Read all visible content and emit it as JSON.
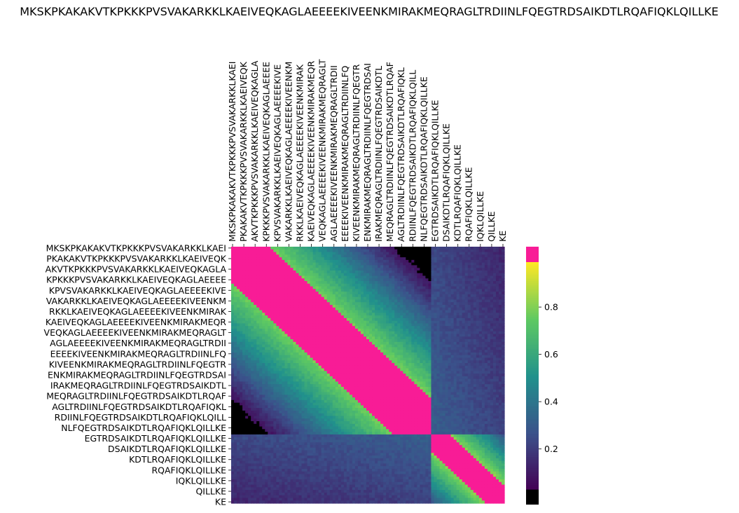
{
  "chart_data": {
    "type": "heatmap",
    "title": "MKSKPKAKAKVTKPKKKPVSVAKARKKLKAEIVEQKAGLAEEEEKIVEENKMIRAKMEQRAGLTRDIINLFQEGTRDSAIKDTLRQAFIQKLQILLKE",
    "sequence": "MKSKPKAKAKVTKPKKKPVSVAKARKKLKAEIVEQKAGLAEEEEKIVEENKMIRAKMEQRAGLTRDIINLFQEGTRDSAIKDTLRQAFIQKLQILLKE",
    "x_tick_labels": [
      "MKSKPKAKAKVTKPKKKPVSVAKARKKLKAEI",
      "PKAKAKVTKPKKKPVSVAKARKKLKAEIVEQK",
      "AKVTKPKKKPVSVAKARKKLKAEIVEQKAGLA",
      "KPKKKPVSVAKARKKLKAEIVEQKAGLAEEEE",
      "KPVSVAKARKKLKAEIVEQKAGLAEEEEKIVE",
      "VAKARKKLKAEIVEQKAGLAEEEEKIVEENKM",
      "RKKLKAEIVEQKAGLAEEEEKIVEENKMIRAK",
      "KAEIVEQKAGLAEEEEKIVEENKMIRAKMEQR",
      "VEQKAGLAEEEEKIVEENKMIRAKMEQRAGLT",
      "AGLAEEEEKIVEENKMIRAKMEQRAGLTRDII",
      "EEEEKIVEENKMIRAKMEQRAGLTRDIINLFQ",
      "KIVEENKMIRAKMEQRAGLTRDIINLFQEGTR",
      "ENKMIRAKMEQRAGLTRDIINLFQEGTRDSAI",
      "IRAKMEQRAGLTRDIINLFQEGTRDSAIKDTL",
      "MEQRAGLTRDIINLFQEGTRDSAIKDTLRQAF",
      "AGLTRDIINLFQEGTRDSAIKDTLRQAFIQKL",
      "RDIINLFQEGTRDSAIKDTLRQAFIQKLQILL",
      "NLFQEGTRDSAIKDTLRQAFIQKLQILLKE",
      "EGTRDSAIKDTLRQAFIQKLQILLKE",
      "DSAIKDTLRQAFIQKLQILLKE",
      "KDTLRQAFIQKLQILLKE",
      "RQAFIQKLQILLKE",
      "IQKLQILLKE",
      "QILLKE",
      "KE"
    ],
    "y_tick_labels": [
      "MKSKPKAKAKVTKPKKKPVSVAKARKKLKAEI",
      "PKAKAKVTKPKKKPVSVAKARKKLKAEIVEQK",
      "AKVTKPKKKPVSVAKARKKLKAEIVEQKAGLA",
      "KPKKKPVSVAKARKKLKAEIVEQKAGLAEEEE",
      "KPVSVAKARKKLKAEIVEQKAGLAEEEEKIVE",
      "VAKARKKLKAEIVEQKAGLAEEEEKIVEENKM",
      "RKKLKAEIVEQKAGLAEEEEKIVEENKMIRAK",
      "KAEIVEQKAGLAEEEEKIVEENKMIRAKMEQR",
      "VEQKAGLAEEEEKIVEENKMIRAKMEQRAGLT",
      "AGLAEEEEKIVEENKMIRAKMEQRAGLTRDII",
      "EEEEKIVEENKMIRAKMEQRAGLTRDIINLFQ",
      "KIVEENKMIRAKMEQRAGLTRDIINLFQEGTR",
      "ENKMIRAKMEQRAGLTRDIINLFQEGTRDSAI",
      "IRAKMEQRAGLTRDIINLFQEGTRDSAIKDTL",
      "MEQRAGLTRDIINLFQEGTRDSAIKDTLRQAF",
      "AGLTRDIINLFQEGTRDSAIKDTLRQAFIQKL",
      "RDIINLFQEGTRDSAIKDTLRQAFIQKLQILL",
      "NLFQEGTRDSAIKDTLRQAFIQKLQILLKE",
      "EGTRDSAIKDTLRQAFIQKLQILLKE",
      "DSAIKDTLRQAFIQKLQILLKE",
      "KDTLRQAFIQKLQILLKE",
      "RQAFIQKLQILLKE",
      "IQKLQILLKE",
      "QILLKE",
      "KE"
    ],
    "colorbar": {
      "ticks": [
        0.2,
        0.4,
        0.6,
        0.8
      ],
      "tick_labels": [
        "0.2",
        "0.4",
        "0.6",
        "0.8"
      ],
      "min": 0.03,
      "max": 0.99,
      "under_color": "#000000",
      "over_color": "#f81c96",
      "over_threshold": 0.95,
      "under_threshold": 0.07
    },
    "colormap_stops": [
      "#440154",
      "#3b528b",
      "#21918c",
      "#5ec962",
      "#fde725"
    ],
    "domain_boundary_window": 71,
    "grid": false
  }
}
